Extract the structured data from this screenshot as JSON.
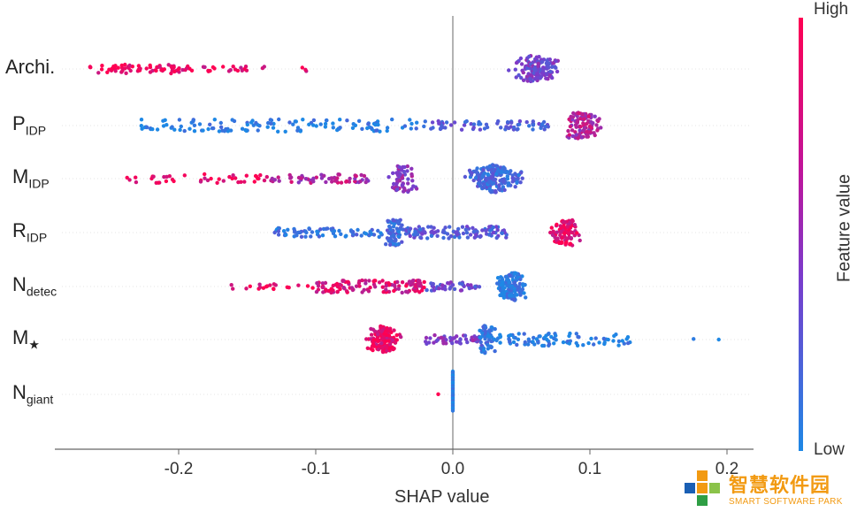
{
  "chart_data": {
    "type": "scatter",
    "subtype": "shap-beeswarm",
    "title": "",
    "xlabel": "SHAP value",
    "ylabel": "",
    "xlim": [
      -0.29,
      0.215
    ],
    "x_ticks": [
      {
        "value": -0.2,
        "label": "-0.2"
      },
      {
        "value": -0.1,
        "label": "-0.1"
      },
      {
        "value": 0.0,
        "label": "0.0"
      },
      {
        "value": 0.1,
        "label": "0.1"
      },
      {
        "value": 0.2,
        "label": "0.2"
      }
    ],
    "grid": false,
    "features": [
      {
        "name": "Archi.",
        "sub": "",
        "min": -0.268,
        "max": 0.1,
        "clusters": [
          {
            "range": [
              -0.265,
              -0.19
            ],
            "n": 70,
            "color": 0.95
          },
          {
            "range": [
              -0.19,
              -0.15
            ],
            "n": 18,
            "color": 0.9
          },
          {
            "range": [
              -0.14,
              -0.135
            ],
            "n": 2,
            "color": 0.85
          },
          {
            "range": [
              -0.11,
              -0.105
            ],
            "n": 3,
            "color": 0.9
          },
          {
            "range": [
              0.03,
              0.1
            ],
            "n": 140,
            "color": 0.45,
            "peak": 0.058
          }
        ]
      },
      {
        "name": "P",
        "sub": "IDP",
        "min": -0.228,
        "max": 0.13,
        "clusters": [
          {
            "range": [
              -0.228,
              -0.02
            ],
            "n": 130,
            "color": 0.05
          },
          {
            "range": [
              -0.02,
              0.07
            ],
            "n": 70,
            "color": 0.3
          },
          {
            "range": [
              0.07,
              0.13
            ],
            "n": 110,
            "color": 0.7,
            "peak": 0.09
          }
        ]
      },
      {
        "name": "M",
        "sub": "IDP",
        "min": -0.245,
        "max": 0.085,
        "clusters": [
          {
            "range": [
              -0.245,
              -0.14
            ],
            "n": 40,
            "color": 0.95
          },
          {
            "range": [
              -0.14,
              -0.06
            ],
            "n": 60,
            "color": 0.7
          },
          {
            "range": [
              -0.06,
              -0.02
            ],
            "n": 60,
            "color": 0.55,
            "peak": -0.035
          },
          {
            "range": [
              -0.02,
              0.08
            ],
            "n": 200,
            "color": 0.2,
            "peak": 0.03
          }
        ]
      },
      {
        "name": "R",
        "sub": "IDP",
        "min": -0.13,
        "max": 0.097,
        "clusters": [
          {
            "range": [
              -0.13,
              -0.05
            ],
            "n": 70,
            "color": 0.15
          },
          {
            "range": [
              -0.05,
              -0.035
            ],
            "n": 70,
            "color": 0.2,
            "peak": -0.043
          },
          {
            "range": [
              -0.035,
              0.04
            ],
            "n": 110,
            "color": 0.3
          },
          {
            "range": [
              0.055,
              0.097
            ],
            "n": 90,
            "color": 0.92,
            "peak": 0.088
          }
        ]
      },
      {
        "name": "N",
        "sub": "detec",
        "min": -0.168,
        "max": 0.063,
        "clusters": [
          {
            "range": [
              -0.168,
              -0.1
            ],
            "n": 20,
            "color": 0.95
          },
          {
            "range": [
              -0.1,
              -0.02
            ],
            "n": 120,
            "color": 0.85
          },
          {
            "range": [
              -0.02,
              0.02
            ],
            "n": 40,
            "color": 0.4
          },
          {
            "range": [
              0.02,
              0.063
            ],
            "n": 140,
            "color": 0.08,
            "peak": 0.045
          }
        ]
      },
      {
        "name": "M",
        "sub": "★",
        "min": -0.072,
        "max": 0.196,
        "clusters": [
          {
            "range": [
              -0.072,
              -0.02
            ],
            "n": 140,
            "color": 0.92,
            "peak": -0.055
          },
          {
            "range": [
              -0.02,
              0.02
            ],
            "n": 50,
            "color": 0.5
          },
          {
            "range": [
              0.02,
              0.03
            ],
            "n": 60,
            "color": 0.15,
            "peak": 0.024
          },
          {
            "range": [
              0.03,
              0.13
            ],
            "n": 90,
            "color": 0.05
          },
          {
            "range": [
              0.174,
              0.176
            ],
            "n": 1,
            "color": 0.0
          },
          {
            "range": [
              0.194,
              0.196
            ],
            "n": 1,
            "color": 0.0
          }
        ]
      },
      {
        "name": "N",
        "sub": "giant",
        "min": -0.01,
        "max": 0.0,
        "clusters": [
          {
            "range": [
              -0.011,
              -0.009
            ],
            "n": 1,
            "color": 0.95
          },
          {
            "range": [
              -0.0005,
              0.0005
            ],
            "n": 30,
            "color": 0.0,
            "stack": "vertical"
          }
        ]
      }
    ],
    "colorbar": {
      "label": "Feature value",
      "high_label": "High",
      "low_label": "Low",
      "high_color": "#ff0052",
      "mid_color": "#7a3ccc",
      "low_color": "#1e88e5"
    }
  },
  "watermark": {
    "cn_text": "智慧软件园",
    "en_text": "SMART SOFTWARE PARK",
    "color": "#f29a12"
  }
}
